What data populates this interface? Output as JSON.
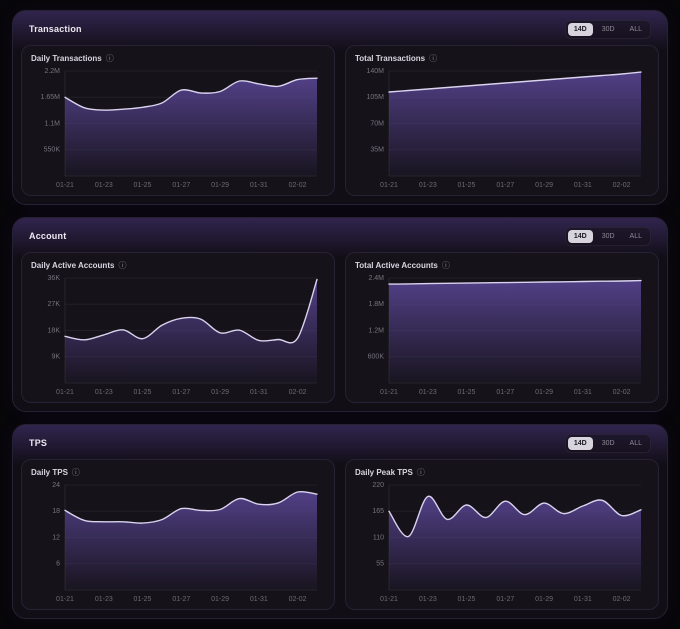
{
  "icons": {
    "info": "ⓘ"
  },
  "controls": {
    "ranges": [
      {
        "label": "14D",
        "selected": true
      },
      {
        "label": "30D",
        "selected": false
      },
      {
        "label": "ALL",
        "selected": false
      }
    ]
  },
  "sections": [
    {
      "title": "Transaction"
    },
    {
      "title": "Account"
    },
    {
      "title": "TPS"
    }
  ],
  "chart_data": [
    {
      "type": "area",
      "title": "Daily Transactions",
      "x": [
        "01-21",
        "01-22",
        "01-23",
        "01-24",
        "01-25",
        "01-26",
        "01-27",
        "01-28",
        "01-29",
        "01-30",
        "01-31",
        "02-01",
        "02-02",
        "02-03"
      ],
      "values": [
        1650000,
        1430000,
        1380000,
        1400000,
        1440000,
        1530000,
        1800000,
        1740000,
        1770000,
        1990000,
        1930000,
        1880000,
        2020000,
        2050000
      ],
      "ylim": [
        0,
        2200000
      ],
      "ytick_values": [
        550000,
        1100000,
        1650000,
        2200000
      ],
      "ytick_labels": [
        "550K",
        "1.1M",
        "1.65M",
        "2.2M"
      ],
      "x_tick_indices": [
        0,
        2,
        4,
        6,
        8,
        10,
        12
      ],
      "x_tick_labels": [
        "01-21",
        "01-23",
        "01-25",
        "01-27",
        "01-29",
        "01-31",
        "02-02"
      ],
      "fill": "#55428c",
      "line": "#d9d3ee"
    },
    {
      "type": "area",
      "title": "Total Transactions",
      "x": [
        "01-21",
        "01-22",
        "01-23",
        "01-24",
        "01-25",
        "01-26",
        "01-27",
        "01-28",
        "01-29",
        "01-30",
        "01-31",
        "02-01",
        "02-02",
        "02-03"
      ],
      "values": [
        112000000,
        114000000,
        116000000,
        118000000,
        120000000,
        122000000,
        124000000,
        126000000,
        128000000,
        130000000,
        132000000,
        134000000,
        136000000,
        138500000
      ],
      "ylim": [
        0,
        140000000
      ],
      "ytick_values": [
        35000000,
        70000000,
        105000000,
        140000000
      ],
      "ytick_labels": [
        "35M",
        "70M",
        "105M",
        "140M"
      ],
      "x_tick_indices": [
        0,
        2,
        4,
        6,
        8,
        10,
        12
      ],
      "x_tick_labels": [
        "01-21",
        "01-23",
        "01-25",
        "01-27",
        "01-29",
        "01-31",
        "02-02"
      ],
      "fill": "#55428c",
      "line": "#d9d3ee"
    },
    {
      "type": "area",
      "title": "Daily Active Accounts",
      "x": [
        "01-21",
        "01-22",
        "01-23",
        "01-24",
        "01-25",
        "01-26",
        "01-27",
        "01-28",
        "01-29",
        "01-30",
        "01-31",
        "02-01",
        "02-02",
        "02-03"
      ],
      "values": [
        16000,
        14800,
        16500,
        18200,
        15200,
        19800,
        22200,
        21900,
        17200,
        18100,
        14600,
        14900,
        15400,
        35500
      ],
      "ylim": [
        0,
        36000
      ],
      "ytick_values": [
        9000,
        18000,
        27000,
        36000
      ],
      "ytick_labels": [
        "9K",
        "18K",
        "27K",
        "36K"
      ],
      "x_tick_indices": [
        0,
        2,
        4,
        6,
        8,
        10,
        12
      ],
      "x_tick_labels": [
        "01-21",
        "01-23",
        "01-25",
        "01-27",
        "01-29",
        "01-31",
        "02-02"
      ],
      "fill": "#55428c",
      "line": "#d9d3ee"
    },
    {
      "type": "area",
      "title": "Total Active Accounts",
      "x": [
        "01-21",
        "01-22",
        "01-23",
        "01-24",
        "01-25",
        "01-26",
        "01-27",
        "01-28",
        "01-29",
        "01-30",
        "01-31",
        "02-01",
        "02-02",
        "02-03"
      ],
      "values": [
        2260000,
        2266000,
        2272000,
        2278000,
        2284000,
        2290000,
        2296000,
        2302000,
        2308000,
        2314000,
        2320000,
        2326000,
        2332000,
        2340000
      ],
      "ylim": [
        0,
        2400000
      ],
      "ytick_values": [
        600000,
        1200000,
        1800000,
        2400000
      ],
      "ytick_labels": [
        "600K",
        "1.2M",
        "1.8M",
        "2.4M"
      ],
      "x_tick_indices": [
        0,
        2,
        4,
        6,
        8,
        10,
        12
      ],
      "x_tick_labels": [
        "01-21",
        "01-23",
        "01-25",
        "01-27",
        "01-29",
        "01-31",
        "02-02"
      ],
      "fill": "#55428c",
      "line": "#d9d3ee"
    },
    {
      "type": "area",
      "title": "Daily TPS",
      "x": [
        "01-21",
        "01-22",
        "01-23",
        "01-24",
        "01-25",
        "01-26",
        "01-27",
        "01-28",
        "01-29",
        "01-30",
        "01-31",
        "02-01",
        "02-02",
        "02-03"
      ],
      "values": [
        18.2,
        15.9,
        15.6,
        15.6,
        15.3,
        16.1,
        18.6,
        18.2,
        18.4,
        20.9,
        19.6,
        19.9,
        22.4,
        21.9
      ],
      "ylim": [
        0,
        24
      ],
      "ytick_values": [
        6,
        12,
        18,
        24
      ],
      "ytick_labels": [
        "6",
        "12",
        "18",
        "24"
      ],
      "x_tick_indices": [
        0,
        2,
        4,
        6,
        8,
        10,
        12
      ],
      "x_tick_labels": [
        "01-21",
        "01-23",
        "01-25",
        "01-27",
        "01-29",
        "01-31",
        "02-02"
      ],
      "fill": "#55428c",
      "line": "#d9d3ee"
    },
    {
      "type": "area",
      "title": "Daily Peak TPS",
      "x": [
        "01-21",
        "01-22",
        "01-23",
        "01-24",
        "01-25",
        "01-26",
        "01-27",
        "01-28",
        "01-29",
        "01-30",
        "01-31",
        "02-01",
        "02-02",
        "02-03"
      ],
      "values": [
        165,
        112,
        196,
        148,
        178,
        152,
        186,
        158,
        182,
        160,
        176,
        188,
        156,
        168
      ],
      "ylim": [
        0,
        220
      ],
      "ytick_values": [
        55,
        110,
        165,
        220
      ],
      "ytick_labels": [
        "55",
        "110",
        "165",
        "220"
      ],
      "x_tick_indices": [
        0,
        2,
        4,
        6,
        8,
        10,
        12
      ],
      "x_tick_labels": [
        "01-21",
        "01-23",
        "01-25",
        "01-27",
        "01-29",
        "01-31",
        "02-02"
      ],
      "fill": "#55428c",
      "line": "#d9d3ee"
    }
  ]
}
